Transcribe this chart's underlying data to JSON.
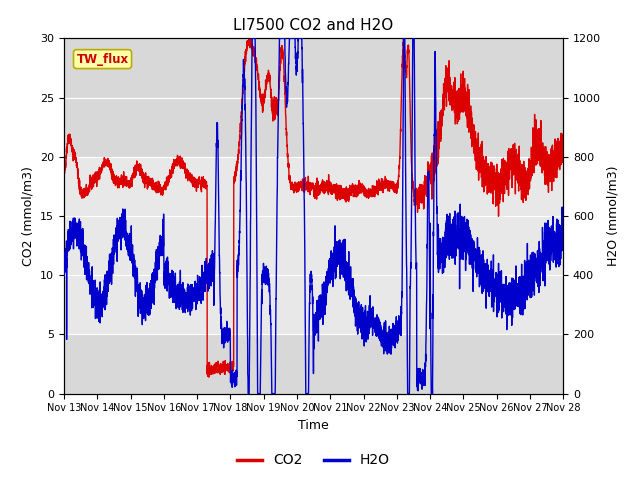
{
  "title": "LI7500 CO2 and H2O",
  "xlabel": "Time",
  "ylabel_left": "CO2 (mmol/m3)",
  "ylabel_right": "H2O (mmol/m3)",
  "ylim_left": [
    0,
    30
  ],
  "ylim_right": [
    0,
    1200
  ],
  "x_tick_labels": [
    "Nov 13",
    "Nov 14",
    "Nov 15",
    "Nov 16",
    "Nov 17",
    "Nov 18",
    "Nov 19",
    "Nov 20",
    "Nov 21",
    "Nov 22",
    "Nov 23",
    "Nov 24",
    "Nov 25",
    "Nov 26",
    "Nov 27",
    "Nov 28"
  ],
  "legend_label": "TW_flux",
  "legend_co2": "CO2",
  "legend_h2o": "H2O",
  "co2_color": "#DD0000",
  "h2o_color": "#0000CC",
  "background_color": "#ffffff",
  "plot_bg_color": "#D8D8D8",
  "inner_band_color": "#E8E8E8",
  "grid_color": "#ffffff",
  "title_fontsize": 11,
  "axis_fontsize": 9,
  "tick_fontsize": 8,
  "legend_box_facecolor": "#FFFFAA",
  "legend_box_edgecolor": "#BBAA00"
}
